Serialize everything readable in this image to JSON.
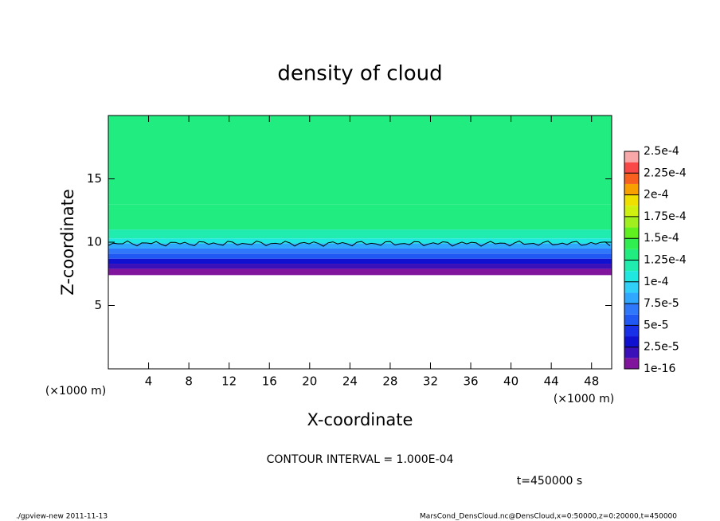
{
  "chart_data": {
    "type": "heatmap",
    "title": "density of cloud",
    "x_label": "X-coordinate",
    "y_label": "Z-coordinate",
    "x_unit_left": "(×1000 m)",
    "x_unit_right": "(×1000 m)",
    "contour_note": "CONTOUR INTERVAL = 1.000E-04",
    "time_note": "t=450000 s",
    "footer_left": "./gpview-new   2011-11-13",
    "footer_right": "MarsCond_DensCloud.nc@DensCloud,x=0:50000,z=0:20000,t=450000",
    "xlim": [
      0,
      50
    ],
    "ylim": [
      0,
      20
    ],
    "xticks": [
      4,
      8,
      12,
      16,
      20,
      24,
      28,
      32,
      36,
      40,
      44,
      48
    ],
    "yticks": [
      5,
      10,
      15
    ],
    "z_edges": [
      7.4,
      7.9,
      8.3,
      8.7,
      9.1,
      9.5,
      9.9,
      10.3,
      11,
      13,
      20
    ],
    "values": [
      5e-06,
      2e-05,
      3.5e-05,
      5.5e-05,
      7e-05,
      8.5e-05,
      0.0001,
      0.000115,
      0.00013,
      0.000135
    ],
    "colorbar": {
      "levels": [
        {
          "value": 1e-16,
          "label": "1e-16"
        },
        {
          "value": 2.5e-05,
          "label": "2.5e-5"
        },
        {
          "value": 5e-05,
          "label": "5e-5"
        },
        {
          "value": 7.5e-05,
          "label": "7.5e-5"
        },
        {
          "value": 0.0001,
          "label": "1e-4"
        },
        {
          "value": 0.000125,
          "label": "1.25e-4"
        },
        {
          "value": 0.00015,
          "label": "1.5e-4"
        },
        {
          "value": 0.000175,
          "label": "1.75e-4"
        },
        {
          "value": 0.0002,
          "label": "2e-4"
        },
        {
          "value": 0.000225,
          "label": "2.25e-4"
        },
        {
          "value": 0.00025,
          "label": "2.5e-4"
        }
      ],
      "colors": [
        "#80149c",
        "#3a10b8",
        "#1010d0",
        "#1830e8",
        "#2058f4",
        "#3078fa",
        "#30a8ff",
        "#30d0f8",
        "#20e8e0",
        "#20ecb0",
        "#20ec80",
        "#30ee50",
        "#60f020",
        "#a0f020",
        "#d0f010",
        "#f0e000",
        "#f8a000",
        "#f86020",
        "#f84848",
        "#f8a8a8"
      ]
    }
  }
}
